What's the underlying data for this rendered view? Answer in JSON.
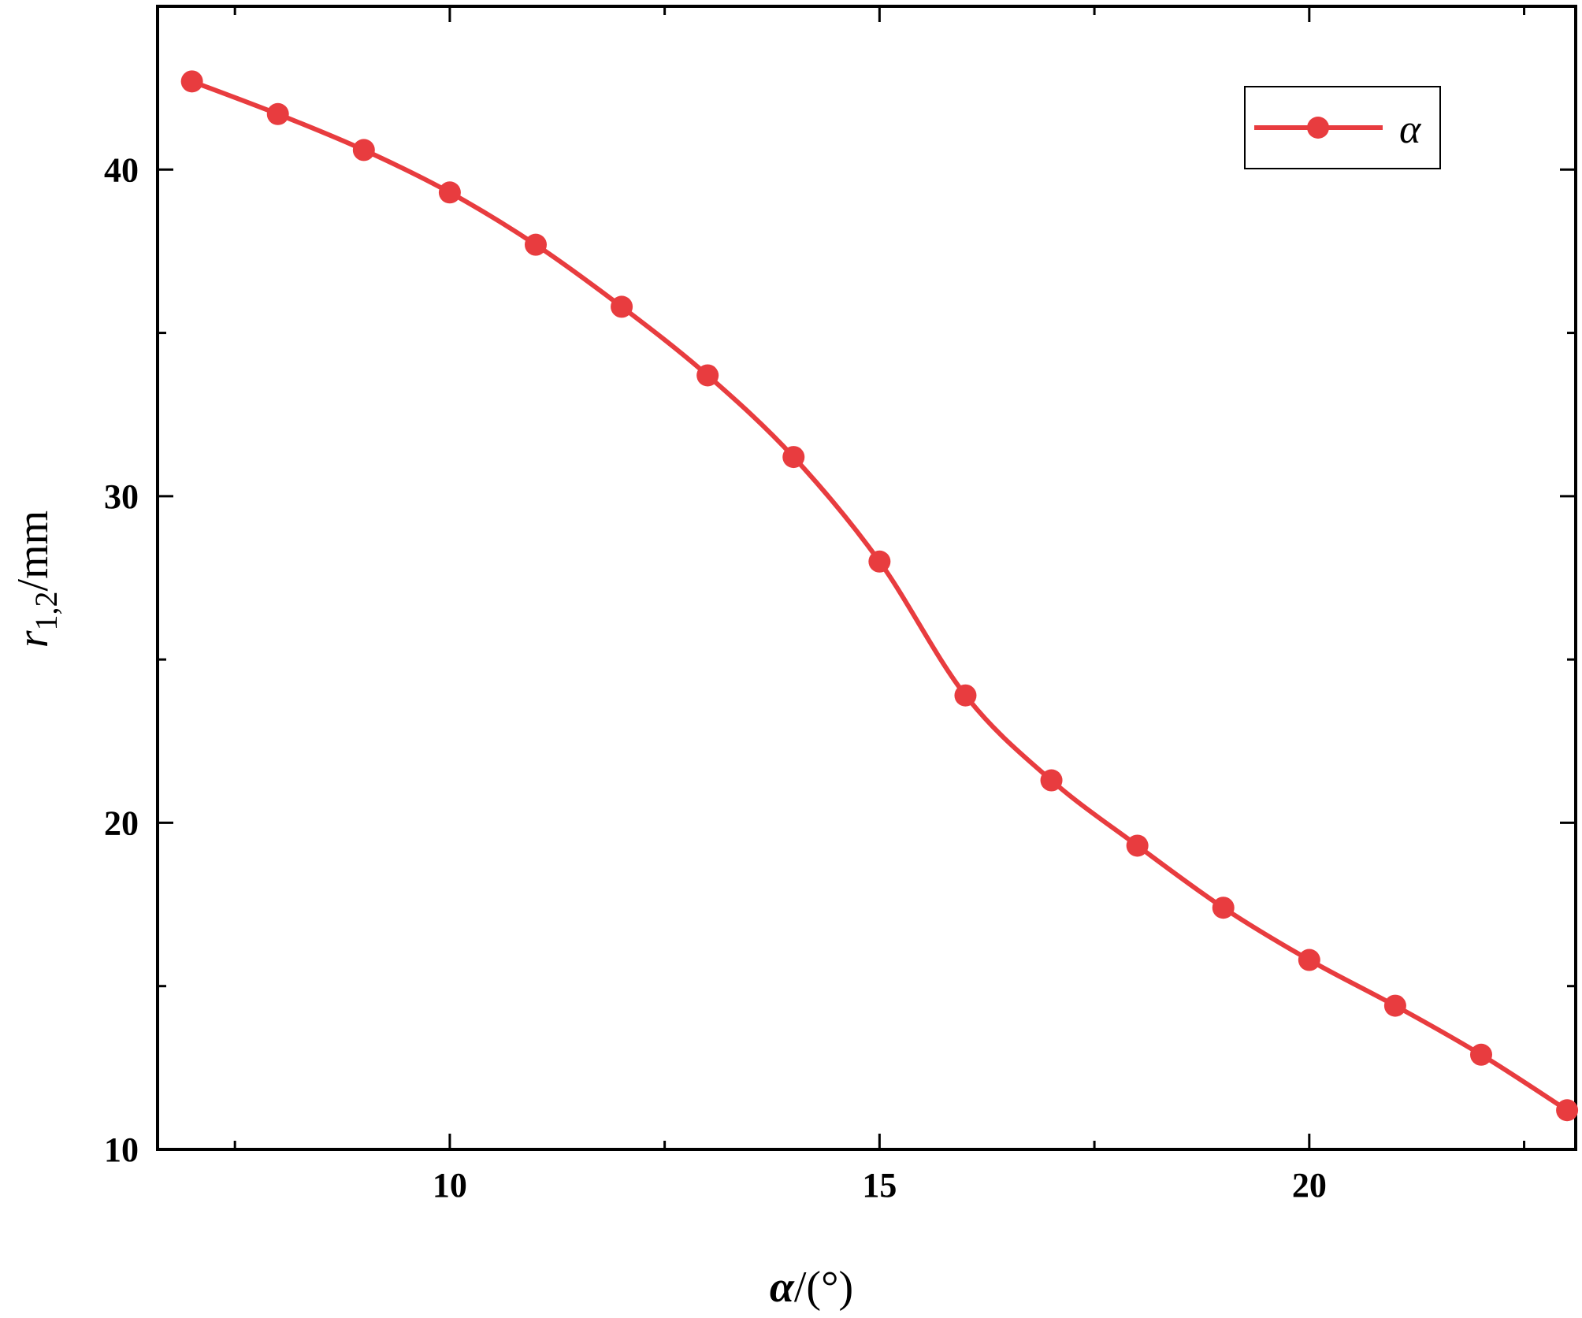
{
  "chart_data": {
    "type": "line",
    "x": [
      7,
      8,
      9,
      10,
      11,
      12,
      13,
      14,
      15,
      16,
      17,
      18,
      19,
      20,
      21,
      22,
      23
    ],
    "series": [
      {
        "name": "α",
        "values": [
          42.7,
          41.7,
          40.6,
          39.3,
          37.7,
          35.8,
          33.7,
          31.2,
          28.0,
          23.9,
          21.3,
          19.3,
          17.4,
          15.8,
          14.4,
          12.9,
          11.2
        ],
        "color": "#e83c3f",
        "marker": "circle"
      }
    ],
    "xlabel": {
      "symbol": "α",
      "unit": "/(°)"
    },
    "ylabel": {
      "symbol": "r",
      "subscript": "1,2",
      "unit": "/mm"
    },
    "xlim": [
      6.6,
      23.1
    ],
    "ylim": [
      10,
      45
    ],
    "x_ticks": [
      10,
      15,
      20
    ],
    "x_tick_labels": [
      "10",
      "15",
      "20"
    ],
    "x_minor_ticks": [
      7.5,
      12.5,
      17.5,
      22.5
    ],
    "y_ticks": [
      10,
      20,
      30,
      40
    ],
    "y_tick_labels": [
      "10",
      "20",
      "30",
      "40"
    ],
    "y_minor_ticks": [
      15,
      25,
      35
    ],
    "grid": false,
    "legend": {
      "position": "top-right",
      "entries": [
        "α"
      ]
    }
  }
}
